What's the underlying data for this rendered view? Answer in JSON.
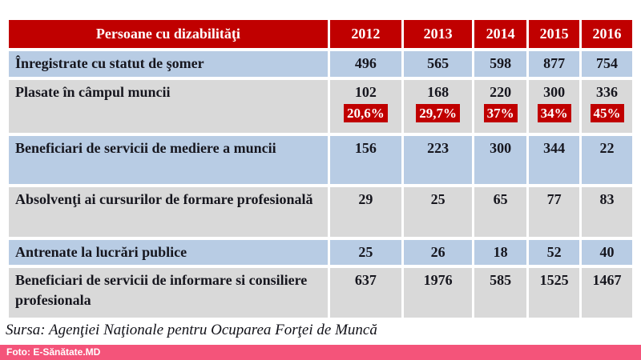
{
  "chart_data": {
    "type": "table",
    "title": "Persoane cu dizabilităţi",
    "columns": [
      "2012",
      "2013",
      "2014",
      "2015",
      "2016"
    ],
    "rows": [
      {
        "label": "Înregistrate cu statut de şomer",
        "values": [
          496,
          565,
          598,
          877,
          754
        ]
      },
      {
        "label": "Plasate în câmpul muncii",
        "values": [
          102,
          168,
          220,
          300,
          336
        ],
        "percents": [
          "20,6%",
          "29,7%",
          "37%",
          "34%",
          "45%"
        ]
      },
      {
        "label": "Beneficiari de servicii de mediere a muncii",
        "values": [
          156,
          223,
          300,
          344,
          22
        ]
      },
      {
        "label": "Absolvenţi ai cursurilor de formare profesională",
        "values": [
          29,
          25,
          65,
          77,
          83
        ]
      },
      {
        "label": "Antrenate la lucrări publice",
        "values": [
          25,
          26,
          18,
          52,
          40
        ]
      },
      {
        "label": "Beneficiari de servicii de informare si consiliere profesionala",
        "values": [
          637,
          1976,
          585,
          1525,
          1467
        ]
      }
    ]
  },
  "source_note": "Sursa: Agenţiei Naţionale pentru Ocuparea Forţei de Muncă",
  "photo_credit": "Foto: E-Sănătate.MD",
  "colors": {
    "header_red": "#c00000",
    "badge_red": "#c00000",
    "row_blue": "#b8cce4",
    "row_gray": "#d9d9d9",
    "credit_pink": "#f4547a",
    "header_text": "#ffffff",
    "body_text": "#16161e"
  }
}
